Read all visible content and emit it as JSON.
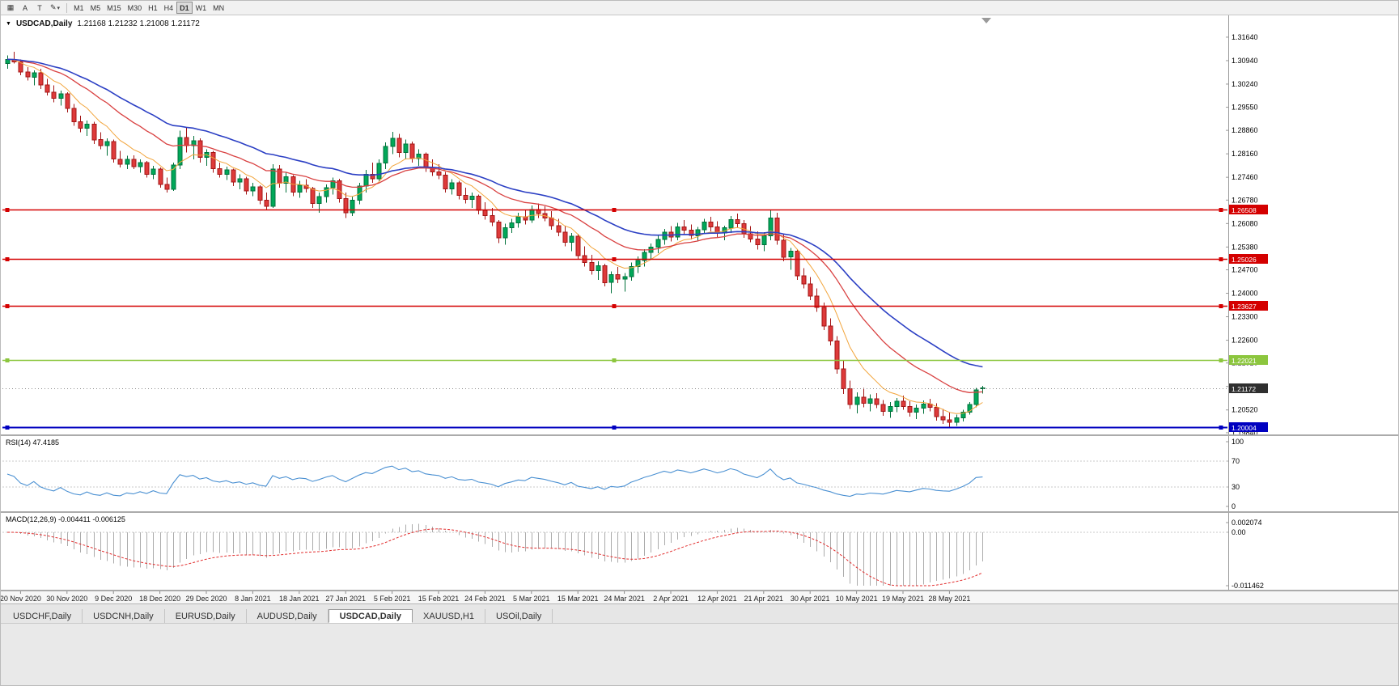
{
  "toolbar": {
    "chart_button": "▦",
    "cursor_button": "A",
    "text_button": "T",
    "draw_button": "✎",
    "draw_caret": "▾",
    "timeframes": [
      "M1",
      "M5",
      "M15",
      "M30",
      "H1",
      "H4",
      "D1",
      "W1",
      "MN"
    ],
    "active_timeframe": "D1"
  },
  "chart_header": {
    "symbol": "USDCAD,Daily",
    "ohlc": "1.21168 1.21232 1.21008 1.21172"
  },
  "chart_data": {
    "type": "candlestick",
    "symbol": "USDCAD",
    "timeframe": "Daily",
    "background": "#FFFFFF",
    "candle_colors": {
      "up": "#00A859",
      "up_stroke": "#00713A",
      "down": "#DE3A3A",
      "down_stroke": "#A31515"
    },
    "price_axis": {
      "top": 1.3229,
      "bottom": 1.1979,
      "labels": [
        "1.31640",
        "1.30940",
        "1.30240",
        "1.29550",
        "1.28860",
        "1.28160",
        "1.27460",
        "1.26780",
        "1.26080",
        "1.25380",
        "1.24700",
        "1.24000",
        "1.23300",
        "1.22600",
        "1.21920",
        "1.21220",
        "1.20520",
        "1.19840"
      ]
    },
    "date_axis": {
      "start_index": 2,
      "step": 7,
      "labels": [
        "20 Nov 2020",
        "30 Nov 2020",
        "9 Dec 2020",
        "18 Dec 2020",
        "29 Dec 2020",
        "8 Jan 2021",
        "18 Jan 2021",
        "27 Jan 2021",
        "5 Feb 2021",
        "15 Feb 2021",
        "24 Feb 2021",
        "5 Mar 2021",
        "15 Mar 2021",
        "24 Mar 2021",
        "2 Apr 2021",
        "12 Apr 2021",
        "21 Apr 2021",
        "30 Apr 2021",
        "10 May 2021",
        "19 May 2021",
        "28 May 2021"
      ]
    },
    "moving_averages": [
      {
        "name": "ma-fast-orange",
        "period": 8,
        "color": "#F2A53C",
        "width": 1
      },
      {
        "name": "ma-mid-red",
        "period": 20,
        "color": "#D94141",
        "width": 1.3
      },
      {
        "name": "ma-slow-blue",
        "period": 34,
        "color": "#2B3FC4",
        "width": 1.6
      }
    ],
    "hlines": [
      {
        "label": "1.26508",
        "value": 1.26508,
        "color": "#D40000",
        "width": 1.6
      },
      {
        "label": "1.25026",
        "value": 1.25026,
        "color": "#D40000",
        "width": 1.6
      },
      {
        "label": "1.23627",
        "value": 1.23627,
        "color": "#D40000",
        "width": 1.6
      },
      {
        "label": "1.22021",
        "value": 1.22021,
        "color": "#8CC63E",
        "width": 1.6
      },
      {
        "label": "1.20004",
        "value": 1.20004,
        "color": "#0000C0",
        "width": 2
      }
    ],
    "current_price": {
      "label": "1.21172",
      "value": 1.21172,
      "badge_bg": "#2F2F2F"
    },
    "rsi": {
      "label": "RSI(14) 47.4185",
      "period": 14,
      "value": "47.4185",
      "axis_labels": [
        "100",
        "70",
        "30",
        "0"
      ],
      "levels": [
        70,
        30
      ],
      "color": "#4A90D2"
    },
    "macd": {
      "label": "MACD(12,26,9) -0.004411 -0.006125",
      "fast": 12,
      "slow": 26,
      "signal": 9,
      "values": [
        "-0.004411",
        "-0.006125"
      ],
      "axis_labels": [
        "0.002074",
        "0.00",
        "-0.011462"
      ],
      "range": {
        "max": 0.002074,
        "min": -0.011462
      },
      "histogram_color": "#ABABAB",
      "signal_color": "#E22E2E"
    },
    "candles": [
      [
        1.3085,
        1.311,
        1.307,
        1.3098
      ],
      [
        1.3098,
        1.312,
        1.3085,
        1.309
      ],
      [
        1.309,
        1.3098,
        1.305,
        1.306
      ],
      [
        1.306,
        1.3075,
        1.3035,
        1.3045
      ],
      [
        1.3045,
        1.3065,
        1.302,
        1.3058
      ],
      [
        1.3058,
        1.307,
        1.301,
        1.3022
      ],
      [
        1.3022,
        1.304,
        1.299,
        1.3
      ],
      [
        1.3,
        1.302,
        1.297,
        1.2982
      ],
      [
        1.2982,
        1.3005,
        1.296,
        1.2995
      ],
      [
        1.2995,
        1.3,
        1.294,
        1.2952
      ],
      [
        1.2952,
        1.2965,
        1.29,
        1.2912
      ],
      [
        1.2912,
        1.293,
        1.288,
        1.2892
      ],
      [
        1.2892,
        1.2915,
        1.287,
        1.2905
      ],
      [
        1.2905,
        1.2912,
        1.2845,
        1.2858
      ],
      [
        1.2858,
        1.288,
        1.283,
        1.284
      ],
      [
        1.284,
        1.2862,
        1.281,
        1.2852
      ],
      [
        1.2852,
        1.2858,
        1.279,
        1.28
      ],
      [
        1.28,
        1.2825,
        1.2775,
        1.2785
      ],
      [
        1.2785,
        1.281,
        1.277,
        1.28
      ],
      [
        1.28,
        1.2812,
        1.277,
        1.2778
      ],
      [
        1.2778,
        1.28,
        1.276,
        1.279
      ],
      [
        1.279,
        1.2795,
        1.2745,
        1.2755
      ],
      [
        1.2755,
        1.278,
        1.274,
        1.277
      ],
      [
        1.277,
        1.2775,
        1.2715,
        1.2725
      ],
      [
        1.2725,
        1.2745,
        1.27,
        1.271
      ],
      [
        1.271,
        1.279,
        1.2705,
        1.2782
      ],
      [
        1.2782,
        1.2885,
        1.277,
        1.2865
      ],
      [
        1.2865,
        1.2895,
        1.282,
        1.284
      ],
      [
        1.284,
        1.287,
        1.28,
        1.2855
      ],
      [
        1.2855,
        1.2862,
        1.279,
        1.2805
      ],
      [
        1.2805,
        1.283,
        1.278,
        1.282
      ],
      [
        1.282,
        1.2825,
        1.276,
        1.2772
      ],
      [
        1.2772,
        1.279,
        1.2745,
        1.2755
      ],
      [
        1.2755,
        1.2778,
        1.2738,
        1.2768
      ],
      [
        1.2768,
        1.2772,
        1.272,
        1.2732
      ],
      [
        1.2732,
        1.2755,
        1.271,
        1.2742
      ],
      [
        1.2742,
        1.2748,
        1.2695,
        1.2705
      ],
      [
        1.2705,
        1.273,
        1.269,
        1.2718
      ],
      [
        1.2718,
        1.2722,
        1.2665,
        1.2678
      ],
      [
        1.2678,
        1.27,
        1.265,
        1.266
      ],
      [
        1.266,
        1.2785,
        1.2655,
        1.277
      ],
      [
        1.277,
        1.2782,
        1.2715,
        1.2728
      ],
      [
        1.2728,
        1.276,
        1.27,
        1.2748
      ],
      [
        1.2748,
        1.2752,
        1.269,
        1.2702
      ],
      [
        1.2702,
        1.2735,
        1.2685,
        1.2722
      ],
      [
        1.2722,
        1.274,
        1.27,
        1.2712
      ],
      [
        1.2712,
        1.2718,
        1.2655,
        1.2668
      ],
      [
        1.2668,
        1.27,
        1.264,
        1.2688
      ],
      [
        1.2688,
        1.2725,
        1.267,
        1.2715
      ],
      [
        1.2715,
        1.2745,
        1.2695,
        1.2735
      ],
      [
        1.2735,
        1.2742,
        1.267,
        1.2682
      ],
      [
        1.2682,
        1.27,
        1.2625,
        1.264
      ],
      [
        1.264,
        1.269,
        1.263,
        1.2678
      ],
      [
        1.2678,
        1.273,
        1.2665,
        1.272
      ],
      [
        1.272,
        1.2768,
        1.27,
        1.2755
      ],
      [
        1.2755,
        1.279,
        1.273,
        1.2742
      ],
      [
        1.2742,
        1.28,
        1.2735,
        1.2788
      ],
      [
        1.2788,
        1.285,
        1.277,
        1.2838
      ],
      [
        1.2838,
        1.2882,
        1.2815,
        1.2862
      ],
      [
        1.2862,
        1.2875,
        1.2805,
        1.282
      ],
      [
        1.282,
        1.2858,
        1.28,
        1.2845
      ],
      [
        1.2845,
        1.2852,
        1.279,
        1.2802
      ],
      [
        1.2802,
        1.283,
        1.278,
        1.2815
      ],
      [
        1.2815,
        1.282,
        1.2762,
        1.2775
      ],
      [
        1.2775,
        1.28,
        1.275,
        1.2762
      ],
      [
        1.2762,
        1.2785,
        1.274,
        1.2752
      ],
      [
        1.2752,
        1.2762,
        1.27,
        1.2712
      ],
      [
        1.2712,
        1.274,
        1.2695,
        1.273
      ],
      [
        1.273,
        1.2735,
        1.268,
        1.2692
      ],
      [
        1.2692,
        1.2715,
        1.2668,
        1.268
      ],
      [
        1.268,
        1.27,
        1.2655,
        1.269
      ],
      [
        1.269,
        1.2695,
        1.2635,
        1.2648
      ],
      [
        1.2648,
        1.2672,
        1.262,
        1.2632
      ],
      [
        1.2632,
        1.2655,
        1.26,
        1.2612
      ],
      [
        1.2612,
        1.2618,
        1.255,
        1.2565
      ],
      [
        1.2565,
        1.2608,
        1.2545,
        1.2595
      ],
      [
        1.2595,
        1.2622,
        1.258,
        1.261
      ],
      [
        1.261,
        1.264,
        1.2595,
        1.2628
      ],
      [
        1.2628,
        1.2648,
        1.2605,
        1.2618
      ],
      [
        1.2618,
        1.2662,
        1.261,
        1.265
      ],
      [
        1.265,
        1.2668,
        1.2625,
        1.2638
      ],
      [
        1.2638,
        1.266,
        1.2615,
        1.2625
      ],
      [
        1.2625,
        1.2645,
        1.259,
        1.2602
      ],
      [
        1.2602,
        1.2622,
        1.257,
        1.2582
      ],
      [
        1.2582,
        1.26,
        1.254,
        1.2552
      ],
      [
        1.2552,
        1.258,
        1.2525,
        1.257
      ],
      [
        1.257,
        1.2578,
        1.25,
        1.2512
      ],
      [
        1.2512,
        1.254,
        1.248,
        1.2492
      ],
      [
        1.2492,
        1.2515,
        1.2455,
        1.2468
      ],
      [
        1.2468,
        1.2495,
        1.244,
        1.2482
      ],
      [
        1.2482,
        1.2488,
        1.242,
        1.2432
      ],
      [
        1.2432,
        1.2465,
        1.24,
        1.2455
      ],
      [
        1.2455,
        1.2478,
        1.243,
        1.2442
      ],
      [
        1.2442,
        1.246,
        1.2405,
        1.245
      ],
      [
        1.245,
        1.2492,
        1.2438,
        1.248
      ],
      [
        1.248,
        1.251,
        1.246,
        1.2498
      ],
      [
        1.2498,
        1.2532,
        1.248,
        1.2522
      ],
      [
        1.2522,
        1.2548,
        1.25,
        1.2538
      ],
      [
        1.2538,
        1.2572,
        1.252,
        1.256
      ],
      [
        1.256,
        1.2592,
        1.2545,
        1.2582
      ],
      [
        1.2582,
        1.26,
        1.2555,
        1.2568
      ],
      [
        1.2568,
        1.261,
        1.2558,
        1.2598
      ],
      [
        1.2598,
        1.2618,
        1.2575,
        1.2588
      ],
      [
        1.2588,
        1.2605,
        1.256,
        1.2572
      ],
      [
        1.2572,
        1.2598,
        1.2555,
        1.259
      ],
      [
        1.259,
        1.2622,
        1.2578,
        1.2612
      ],
      [
        1.2612,
        1.2628,
        1.2585,
        1.2598
      ],
      [
        1.2598,
        1.2615,
        1.2568,
        1.258
      ],
      [
        1.258,
        1.2602,
        1.2558,
        1.2595
      ],
      [
        1.2595,
        1.263,
        1.258,
        1.262
      ],
      [
        1.262,
        1.2638,
        1.2595,
        1.2608
      ],
      [
        1.2608,
        1.2618,
        1.2565,
        1.2578
      ],
      [
        1.2578,
        1.26,
        1.2552,
        1.2562
      ],
      [
        1.2562,
        1.2585,
        1.253,
        1.2545
      ],
      [
        1.2545,
        1.2582,
        1.2525,
        1.2572
      ],
      [
        1.2572,
        1.265,
        1.2558,
        1.2625
      ],
      [
        1.2625,
        1.264,
        1.2545,
        1.2558
      ],
      [
        1.2558,
        1.2575,
        1.2495,
        1.2508
      ],
      [
        1.2508,
        1.2535,
        1.247,
        1.2525
      ],
      [
        1.2525,
        1.2532,
        1.244,
        1.2452
      ],
      [
        1.2452,
        1.2475,
        1.2415,
        1.2428
      ],
      [
        1.2428,
        1.2448,
        1.238,
        1.2392
      ],
      [
        1.2392,
        1.2415,
        1.2345,
        1.2358
      ],
      [
        1.2358,
        1.2372,
        1.229,
        1.2302
      ],
      [
        1.2302,
        1.2325,
        1.2245,
        1.2258
      ],
      [
        1.2258,
        1.2272,
        1.216,
        1.2175
      ],
      [
        1.2175,
        1.22,
        1.21,
        1.2115
      ],
      [
        1.2115,
        1.214,
        1.2055,
        1.2068
      ],
      [
        1.2068,
        1.2105,
        1.2042,
        1.209
      ],
      [
        1.209,
        1.2118,
        1.206,
        1.2072
      ],
      [
        1.2072,
        1.2098,
        1.2048,
        1.2085
      ],
      [
        1.2085,
        1.2102,
        1.2058,
        1.2068
      ],
      [
        1.2068,
        1.2082,
        1.2035,
        1.2048
      ],
      [
        1.2048,
        1.2075,
        1.2028,
        1.2062
      ],
      [
        1.2062,
        1.2088,
        1.2045,
        1.2078
      ],
      [
        1.2078,
        1.2095,
        1.2052,
        1.2062
      ],
      [
        1.2062,
        1.2078,
        1.2032,
        1.2045
      ],
      [
        1.2045,
        1.2068,
        1.2025,
        1.2058
      ],
      [
        1.2058,
        1.208,
        1.204,
        1.207
      ],
      [
        1.207,
        1.2085,
        1.2048,
        1.206
      ],
      [
        1.206,
        1.2072,
        1.202,
        1.2032
      ],
      [
        1.2032,
        1.2055,
        1.201,
        1.2022
      ],
      [
        1.2022,
        1.2045,
        1.2002,
        1.2015
      ],
      [
        1.2015,
        1.2038,
        1.2004,
        1.2028
      ],
      [
        1.2028,
        1.2052,
        1.2018,
        1.2045
      ],
      [
        1.2045,
        1.2075,
        1.2038,
        1.2068
      ],
      [
        1.2068,
        1.2118,
        1.206,
        1.2112
      ],
      [
        1.21168,
        1.21232,
        1.21008,
        1.21172
      ]
    ]
  },
  "tabs": {
    "items": [
      "USDCHF,Daily",
      "USDCNH,Daily",
      "EURUSD,Daily",
      "AUDUSD,Daily",
      "USDCAD,Daily",
      "XAUUSD,H1",
      "USOil,Daily"
    ],
    "active_index": 4
  }
}
